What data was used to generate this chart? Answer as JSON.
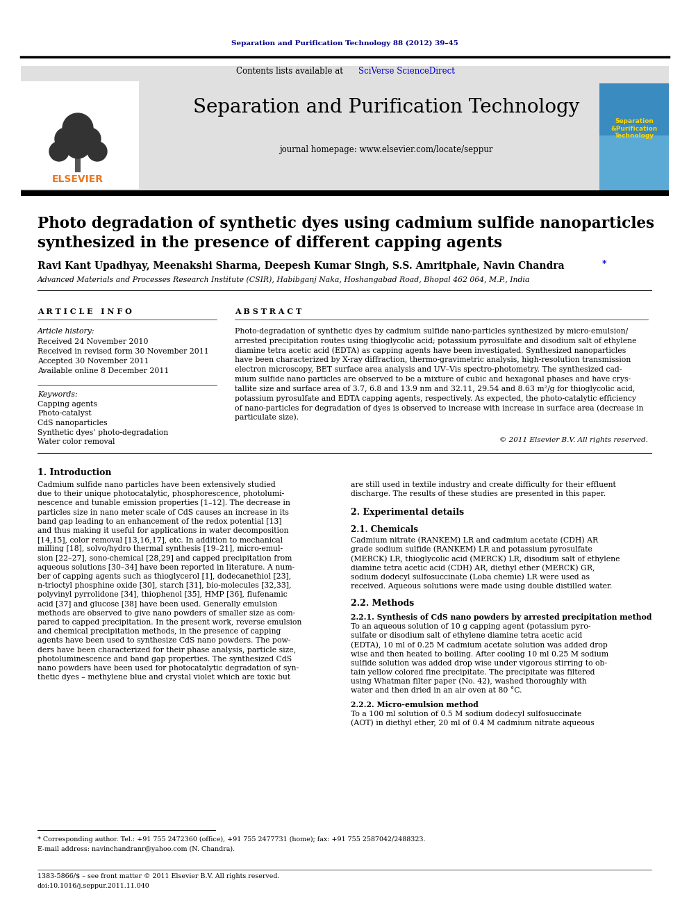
{
  "journal_ref": "Separation and Purification Technology 88 (2012) 39–45",
  "journal_title": "Separation and Purification Technology",
  "journal_homepage": "journal homepage: www.elsevier.com/locate/seppur",
  "contents_text_pre": "Contents lists available at ",
  "contents_text_link": "SciVerse ScienceDirect",
  "elsevier_text": "ELSEVIER",
  "paper_title_line1": "Photo degradation of synthetic dyes using cadmium sulfide nanoparticles",
  "paper_title_line2": "synthesized in the presence of different capping agents",
  "author_base": "Ravi Kant Upadhyay, Meenakshi Sharma, Deepesh Kumar Singh, S.S. Amritphale, Navin Chandra ",
  "affiliation": "Advanced Materials and Processes Research Institute (CSIR), Habibganj Naka, Hoshangabad Road, Bhopal 462 064, M.P., India",
  "article_info_title": "A R T I C L E   I N F O",
  "abstract_title": "A B S T R A C T",
  "article_history_label": "Article history:",
  "received": "Received 24 November 2010",
  "received_revised": "Received in revised form 30 November 2011",
  "accepted": "Accepted 30 November 2011",
  "available_online": "Available online 8 December 2011",
  "keywords_label": "Keywords:",
  "keyword1": "Capping agents",
  "keyword2": "Photo-catalyst",
  "keyword3": "CdS nanoparticles",
  "keyword4": "Synthetic dyes’ photo-degradation",
  "keyword5": "Water color removal",
  "copyright": "© 2011 Elsevier B.V. All rights reserved.",
  "intro_title": "1. Introduction",
  "exp_title": "2. Experimental details",
  "chem_title": "2.1. Chemicals",
  "methods_title": "2.2. Methods",
  "synthesis_title": "2.2.1. Synthesis of CdS nano powders by arrested precipitation method",
  "micro_title": "2.2.2. Micro-emulsion method",
  "footnote_star": "* Corresponding author. Tel.: +91 755 2472360 (office), +91 755 2477731 (home); fax: +91 755 2587042/2488323.",
  "footnote_email": "E-mail address: navinchandranr@yahoo.com (N. Chandra).",
  "issn_line": "1383-5866/$ – see front matter © 2011 Elsevier B.V. All rights reserved.",
  "doi_line": "doi:10.1016/j.seppur.2011.11.040",
  "bg_color": "#ffffff",
  "dark_navy": "#000080",
  "orange": "#E87722",
  "blue_link": "#0000CC",
  "cover_bg": "#3a8bbf",
  "abstract_lines": [
    "Photo-degradation of synthetic dyes by cadmium sulfide nano-particles synthesized by micro-emulsion/",
    "arrested precipitation routes using thioglycolic acid; potassium pyrosulfate and disodium salt of ethylene",
    "diamine tetra acetic acid (EDTA) as capping agents have been investigated. Synthesized nanoparticles",
    "have been characterized by X-ray diffraction, thermo-gravimetric analysis, high-resolution transmission",
    "electron microscopy, BET surface area analysis and UV–Vis spectro-photometry. The synthesized cad-",
    "mium sulfide nano particles are observed to be a mixture of cubic and hexagonal phases and have crys-",
    "tallite size and surface area of 3.7, 6.8 and 13.9 nm and 32.11, 29.54 and 8.63 m²/g for thioglycolic acid,",
    "potassium pyrosulfate and EDTA capping agents, respectively. As expected, the photo-catalytic efficiency",
    "of nano-particles for degradation of dyes is observed to increase with increase in surface area (decrease in",
    "particulate size)."
  ],
  "intro_lines_left": [
    "Cadmium sulfide nano particles have been extensively studied",
    "due to their unique photocatalytic, phosphorescence, photolumi-",
    "nescence and tunable emission properties [1–12]. The decrease in",
    "particles size in nano meter scale of CdS causes an increase in its",
    "band gap leading to an enhancement of the redox potential [13]",
    "and thus making it useful for applications in water decomposition",
    "[14,15], color removal [13,16,17], etc. In addition to mechanical",
    "milling [18], solvo/hydro thermal synthesis [19–21], micro-emul-",
    "sion [22–27], sono-chemical [28,29] and capped precipitation from",
    "aqueous solutions [30–34] have been reported in literature. A num-",
    "ber of capping agents such as thioglycerol [1], dodecanethiol [23],",
    "n-trioctyl phosphine oxide [30], starch [31], bio-molecules [32,33],",
    "polyvinyl pyrrolidone [34], thiophenol [35], HMP [36], flufenamic",
    "acid [37] and glucose [38] have been used. Generally emulsion",
    "methods are observed to give nano powders of smaller size as com-",
    "pared to capped precipitation. In the present work, reverse emulsion",
    "and chemical precipitation methods, in the presence of capping",
    "agents have been used to synthesize CdS nano powders. The pow-",
    "ders have been characterized for their phase analysis, particle size,",
    "photoluminescence and band gap properties. The synthesized CdS",
    "nano powders have been used for photocatalytic degradation of syn-",
    "thetic dyes – methylene blue and crystal violet which are toxic but"
  ],
  "right_col_lines": [
    "are still used in textile industry and create difficulty for their effluent",
    "discharge. The results of these studies are presented in this paper."
  ],
  "chem_lines": [
    "Cadmium nitrate (RANKEM) LR and cadmium acetate (CDH) AR",
    "grade sodium sulfide (RANKEM) LR and potassium pyrosulfate",
    "(MERCK) LR, thioglycolic acid (MERCK) LR, disodium salt of ethylene",
    "diamine tetra acetic acid (CDH) AR, diethyl ether (MERCK) GR,",
    "sodium dodecyl sulfosuccinate (Loba chemie) LR were used as",
    "received. Aqueous solutions were made using double distilled water."
  ],
  "synth_lines": [
    "To an aqueous solution of 10 g capping agent (potassium pyro-",
    "sulfate or disodium salt of ethylene diamine tetra acetic acid",
    "(EDTA), 10 ml of 0.25 M cadmium acetate solution was added drop",
    "wise and then heated to boiling. After cooling 10 ml 0.25 M sodium",
    "sulfide solution was added drop wise under vigorous stirring to ob-",
    "tain yellow colored fine precipitate. The precipitate was filtered",
    "using Whatman filter paper (No. 42), washed thoroughly with",
    "water and then dried in an air oven at 80 °C."
  ],
  "micro_lines": [
    "To a 100 ml solution of 0.5 M sodium dodecyl sulfosuccinate",
    "(AOT) in diethyl ether, 20 ml of 0.4 M cadmium nitrate aqueous"
  ]
}
